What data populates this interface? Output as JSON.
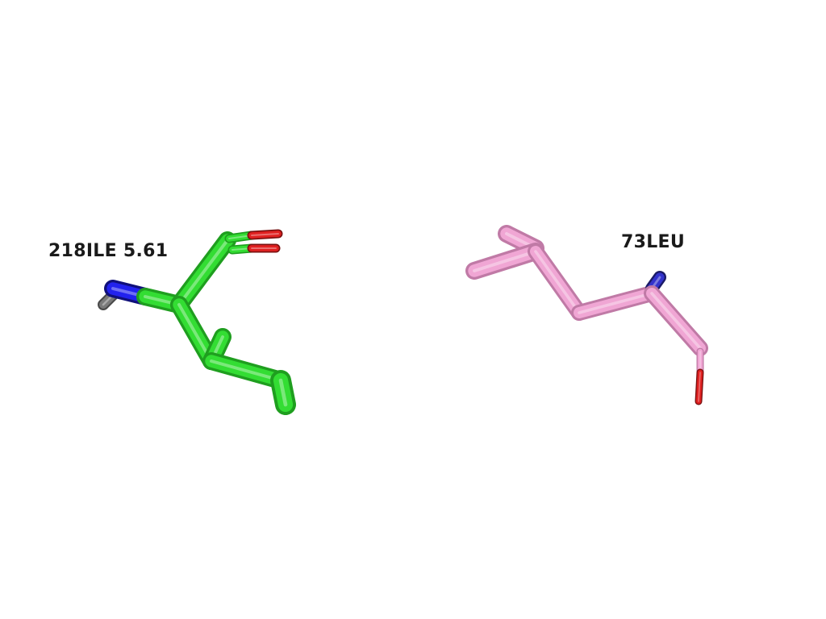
{
  "residues": [
    {
      "label": "218ILE 5.61",
      "carbon_color": "#33dd33",
      "carbon_dark": "#1f9e1f",
      "nitrogen_color": "#2222ee",
      "oxygen_color": "#e02020",
      "hydrogen_color": "#7a7a7a"
    },
    {
      "label": "73LEU",
      "carbon_color": "#f0a6d4",
      "carbon_dark": "#c07aa6",
      "nitrogen_color": "#3333cc",
      "oxygen_color": "#e02020"
    }
  ]
}
